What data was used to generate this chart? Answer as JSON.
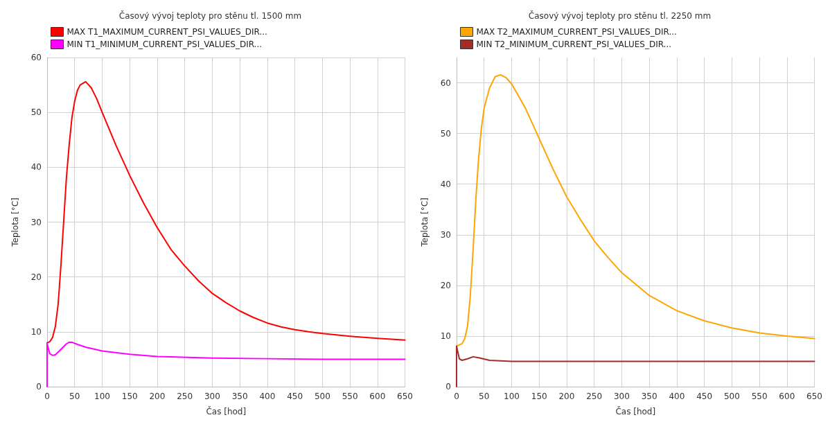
{
  "chart_data": [
    {
      "type": "line",
      "title": "Časový vývoj teploty pro stěnu tl. 1500 mm",
      "xlabel": "Čas [hod]",
      "ylabel": "Teplota [°C]",
      "xlim": [
        0,
        650
      ],
      "xticks": [
        0,
        50,
        100,
        150,
        200,
        250,
        300,
        350,
        400,
        450,
        500,
        550,
        600,
        650
      ],
      "ylim": [
        0,
        60
      ],
      "yticks": [
        0,
        10,
        20,
        30,
        40,
        50,
        60
      ],
      "grid": true,
      "legend": "top left",
      "marker": "none",
      "line_style": "solid",
      "series": [
        {
          "name": "MAX T1_MAXIMUM_CURRENT_PSI_VALUES_DIR...",
          "color": "#ff0000",
          "x": [
            0,
            5,
            10,
            15,
            20,
            25,
            30,
            35,
            40,
            45,
            50,
            55,
            60,
            70,
            80,
            90,
            100,
            125,
            150,
            175,
            200,
            225,
            250,
            275,
            300,
            325,
            350,
            375,
            400,
            425,
            450,
            475,
            500,
            550,
            600,
            650
          ],
          "values": [
            8,
            8.2,
            9,
            11,
            15,
            22,
            30,
            38,
            44,
            49,
            52,
            54,
            55,
            55.6,
            54.5,
            52.5,
            50,
            44,
            38.5,
            33.5,
            29,
            25,
            22,
            19.3,
            17,
            15.3,
            13.8,
            12.6,
            11.6,
            10.9,
            10.4,
            10,
            9.7,
            9.2,
            8.8,
            8.5
          ]
        },
        {
          "name": "MIN T1_MINIMUM_CURRENT_PSI_VALUES_DIR...",
          "color": "#ff00ff",
          "x": [
            0,
            0,
            2,
            5,
            10,
            15,
            25,
            35,
            40,
            45,
            55,
            70,
            100,
            150,
            200,
            300,
            400,
            500,
            650
          ],
          "values": [
            0,
            8,
            7,
            6,
            5.7,
            5.8,
            6.8,
            7.8,
            8.1,
            8.1,
            7.7,
            7.2,
            6.5,
            5.9,
            5.5,
            5.2,
            5.1,
            5,
            5
          ]
        }
      ]
    },
    {
      "type": "line",
      "title": "Časový vývoj teploty pro stěnu tl. 2250 mm",
      "xlabel": "Čas [hod]",
      "ylabel": "Teplota [°C]",
      "xlim": [
        0,
        650
      ],
      "xticks": [
        0,
        50,
        100,
        150,
        200,
        250,
        300,
        350,
        400,
        450,
        500,
        550,
        600,
        650
      ],
      "ylim": [
        0,
        65
      ],
      "yticks": [
        0,
        10,
        20,
        30,
        40,
        50,
        60
      ],
      "grid": true,
      "legend": "top left",
      "marker": "none",
      "line_style": "solid",
      "series": [
        {
          "name": "MAX T2_MAXIMUM_CURRENT_PSI_VALUES_DIR...",
          "color": "#ffa500",
          "x": [
            0,
            10,
            15,
            20,
            25,
            30,
            35,
            40,
            45,
            50,
            60,
            70,
            80,
            90,
            100,
            125,
            150,
            175,
            200,
            225,
            250,
            275,
            300,
            350,
            400,
            450,
            500,
            550,
            600,
            650
          ],
          "values": [
            8,
            8.5,
            9.5,
            12,
            18,
            27,
            37,
            45,
            51,
            55,
            59,
            61.2,
            61.6,
            61,
            59.8,
            55,
            49,
            43,
            37.5,
            33,
            28.8,
            25.5,
            22.5,
            18,
            15,
            13,
            11.6,
            10.6,
            10,
            9.5
          ]
        },
        {
          "name": "MIN T2_MINIMUM_CURRENT_PSI_VALUES_DIR...",
          "color": "#a52a2a",
          "x": [
            0,
            0,
            2,
            5,
            10,
            20,
            30,
            40,
            60,
            100,
            650
          ],
          "values": [
            0,
            8,
            7,
            5.5,
            5.2,
            5.5,
            5.9,
            5.7,
            5.2,
            5,
            5
          ]
        }
      ]
    }
  ]
}
